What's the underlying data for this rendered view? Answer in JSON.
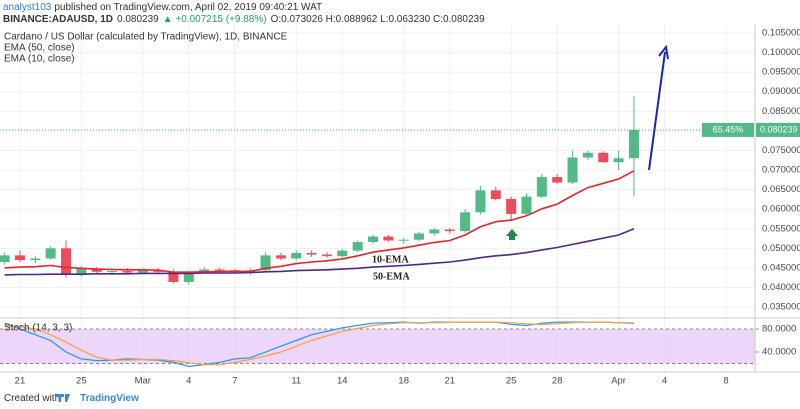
{
  "header": {
    "author": "analyst103",
    "published": "published on TradingView.com, April 02, 2019 09:40:21 WAT",
    "symbol": "BINANCE:ADAUSD, 1D",
    "last": "0.080239",
    "change": "▲ +0.007215 (+9.88%)",
    "ohlc": "O:0.073026 H:0.088962 L:0.063230 C:0.080239"
  },
  "footer": {
    "created": "Created with",
    "brand": "TradingView"
  },
  "chart_data": [
    {
      "type": "candlestick",
      "title": "Cardano / US Dollar (calculated by TradingView), 1D, BINANCE",
      "categories": [
        null,
        "21",
        null,
        null,
        null,
        "25",
        null,
        null,
        null,
        "Mar",
        null,
        null,
        "4",
        null,
        null,
        "7",
        null,
        null,
        null,
        "11",
        null,
        null,
        "14",
        null,
        null,
        null,
        "18",
        null,
        null,
        "21",
        null,
        null,
        null,
        "25",
        null,
        null,
        "28",
        null,
        null,
        null,
        "Apr",
        null,
        null,
        "4",
        null,
        null,
        null,
        "8",
        null
      ],
      "open": [
        0.0465,
        0.0482,
        0.047,
        0.0474,
        0.05,
        0.0432,
        0.0448,
        0.044,
        0.0442,
        0.0438,
        0.0444,
        0.044,
        0.0414,
        0.044,
        0.0446,
        0.0444,
        0.0442,
        0.0444,
        0.0482,
        0.0474,
        0.0488,
        0.0484,
        0.048,
        0.0494,
        0.0516,
        0.053,
        0.052,
        0.0522,
        0.0538,
        0.0548,
        0.0544,
        0.0592,
        0.0648,
        0.0626,
        0.0588,
        0.0632,
        0.0682,
        0.0668,
        0.0732,
        0.0744,
        0.072,
        0.073026,
        null,
        null,
        null,
        null,
        null,
        null,
        null
      ],
      "high": [
        0.0488,
        0.0495,
        0.048,
        0.0505,
        0.052,
        0.0455,
        0.0452,
        0.0448,
        0.045,
        0.0448,
        0.045,
        0.0446,
        0.0442,
        0.0452,
        0.045,
        0.0448,
        0.045,
        0.049,
        0.0488,
        0.0495,
        0.0494,
        0.049,
        0.0498,
        0.052,
        0.0535,
        0.0534,
        0.0526,
        0.0542,
        0.0552,
        0.0552,
        0.06,
        0.066,
        0.0658,
        0.0632,
        0.064,
        0.069,
        0.069,
        0.075,
        0.075,
        0.0748,
        0.075,
        0.088962,
        null,
        null,
        null,
        null,
        null,
        null,
        null
      ],
      "low": [
        0.0458,
        0.0465,
        0.0462,
        0.047,
        0.0425,
        0.0428,
        0.0435,
        0.0432,
        0.0436,
        0.0434,
        0.0436,
        0.041,
        0.0408,
        0.0436,
        0.0438,
        0.0436,
        0.0432,
        0.044,
        0.047,
        0.047,
        0.0478,
        0.0476,
        0.0476,
        0.049,
        0.0512,
        0.0516,
        0.0512,
        0.0518,
        0.0532,
        0.0538,
        0.054,
        0.0586,
        0.0622,
        0.057,
        0.0582,
        0.0628,
        0.0664,
        0.0664,
        0.0726,
        0.0718,
        0.07,
        0.06323,
        null,
        null,
        null,
        null,
        null,
        null,
        null
      ],
      "close": [
        0.0482,
        0.047,
        0.0474,
        0.05,
        0.0432,
        0.0448,
        0.044,
        0.0442,
        0.0438,
        0.0444,
        0.044,
        0.0414,
        0.044,
        0.0446,
        0.0444,
        0.0442,
        0.0444,
        0.0482,
        0.0474,
        0.0488,
        0.0484,
        0.048,
        0.0494,
        0.0516,
        0.053,
        0.052,
        0.0522,
        0.0538,
        0.0548,
        0.0544,
        0.0592,
        0.0648,
        0.0626,
        0.0588,
        0.0632,
        0.0682,
        0.0668,
        0.0732,
        0.0744,
        0.072,
        0.073,
        0.080239,
        null,
        null,
        null,
        null,
        null,
        null,
        null
      ],
      "up_color": "#53b987",
      "down_color": "#eb4d5c",
      "series": [
        {
          "name": "EMA (50, close)",
          "color": "#4b2a86",
          "values": [
            0.0432,
            0.0433,
            0.0433,
            0.0434,
            0.0434,
            0.0434,
            0.0435,
            0.0435,
            0.0435,
            0.0436,
            0.0436,
            0.0436,
            0.0436,
            0.0437,
            0.0437,
            0.0437,
            0.0438,
            0.044,
            0.0441,
            0.0443,
            0.0444,
            0.0445,
            0.0447,
            0.0449,
            0.0452,
            0.0454,
            0.0456,
            0.0459,
            0.0462,
            0.0465,
            0.047,
            0.0476,
            0.0481,
            0.0484,
            0.0489,
            0.0496,
            0.0502,
            0.051,
            0.0518,
            0.0526,
            0.0534,
            0.055,
            null,
            null,
            null,
            null,
            null,
            null,
            null
          ]
        },
        {
          "name": "EMA (10, close)",
          "color": "#e8232e",
          "values": [
            0.045,
            0.0452,
            0.0453,
            0.0456,
            0.0451,
            0.0449,
            0.0447,
            0.0446,
            0.0445,
            0.0445,
            0.0444,
            0.0439,
            0.0439,
            0.044,
            0.0441,
            0.0441,
            0.0441,
            0.0449,
            0.0454,
            0.0461,
            0.0465,
            0.0468,
            0.0473,
            0.0481,
            0.049,
            0.0496,
            0.0501,
            0.0508,
            0.0515,
            0.052,
            0.0534,
            0.0555,
            0.0568,
            0.0572,
            0.0583,
            0.0601,
            0.0613,
            0.0635,
            0.0655,
            0.0666,
            0.0677,
            0.0698,
            null,
            null,
            null,
            null,
            null,
            null,
            null
          ]
        }
      ],
      "annotations": [
        "10-EMA",
        "50-EMA"
      ],
      "last_price_label": "0.080239",
      "percent_label": "65.45%",
      "ylim": [
        0.0322,
        0.1073
      ],
      "yticks": [
        {
          "value": 0.035,
          "label": "0.035000"
        },
        {
          "value": 0.04,
          "label": "0.040000"
        },
        {
          "value": 0.045,
          "label": "0.045000"
        },
        {
          "value": 0.05,
          "label": "0.050000"
        },
        {
          "value": 0.055,
          "label": "0.055000"
        },
        {
          "value": 0.06,
          "label": "0.060000"
        },
        {
          "value": 0.065,
          "label": "0.065000"
        },
        {
          "value": 0.07,
          "label": "0.070000"
        },
        {
          "value": 0.075,
          "label": "0.075000"
        },
        {
          "value": 0.08,
          "label": "0.080000"
        },
        {
          "value": 0.085,
          "label": "0.085000"
        },
        {
          "value": 0.09,
          "label": "0.090000"
        },
        {
          "value": 0.095,
          "label": "0.095000"
        },
        {
          "value": 0.1,
          "label": "0.100000"
        },
        {
          "value": 0.105,
          "label": "0.105000"
        }
      ],
      "grid": true
    },
    {
      "type": "line",
      "title": "Stoch (14, 3, 3)",
      "series": [
        {
          "color": "#2196f3",
          "values": [
            90,
            80,
            70,
            60,
            40,
            28,
            25,
            26,
            28,
            27,
            26,
            22,
            15,
            18,
            22,
            28,
            30,
            40,
            50,
            60,
            70,
            76,
            82,
            86,
            90,
            91,
            92,
            90,
            92,
            92,
            92,
            92,
            92,
            88,
            86,
            90,
            92,
            92,
            92,
            92,
            91,
            90,
            null,
            null,
            null,
            null,
            null,
            null,
            null
          ]
        },
        {
          "color": "#ff9f3a",
          "values": [
            85,
            84,
            80,
            70,
            57,
            43,
            31,
            26,
            26,
            27,
            27,
            25,
            21,
            18,
            18,
            22,
            27,
            33,
            40,
            50,
            60,
            68,
            76,
            81,
            86,
            89,
            91,
            91,
            91,
            92,
            92,
            92,
            92,
            91,
            89,
            88,
            89,
            91,
            92,
            92,
            91,
            89,
            null,
            null,
            null,
            null,
            null,
            null,
            null
          ]
        }
      ],
      "band": [
        20,
        80
      ],
      "band_color": "#e5c8f7",
      "ylim": [
        8.7,
        93.9
      ],
      "yticks": [
        {
          "value": 80,
          "label": "80.0000"
        },
        {
          "value": 40,
          "label": "40.0000"
        }
      ]
    }
  ]
}
